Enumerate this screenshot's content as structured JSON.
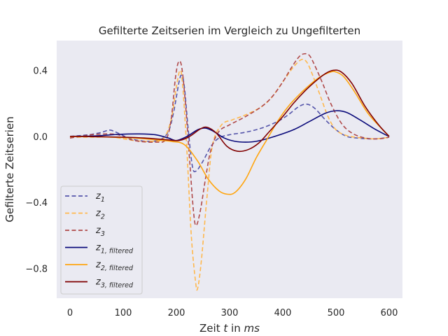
{
  "chart_data": {
    "type": "line",
    "title": "Gefilterte Zeitserien im Vergleich zu Ungefilterten",
    "xlabel_prefix": "Zeit",
    "xlabel_var": "t",
    "xlabel_mid": "in",
    "xlabel_unit": "ms",
    "ylabel": "Gefilterte Zeitserien",
    "xlim": [
      -25,
      625
    ],
    "ylim": [
      -0.98,
      0.58
    ],
    "xticks": [
      0,
      100,
      200,
      300,
      400,
      500,
      600
    ],
    "yticks": [
      0.4,
      0.0,
      -0.4,
      -0.8
    ],
    "xtick_labels": [
      "0",
      "100",
      "200",
      "300",
      "400",
      "500",
      "600"
    ],
    "ytick_labels": [
      "0.4",
      "0.0",
      "−0.4",
      "−0.8"
    ],
    "grid": false,
    "legend_position": "lower-left",
    "background": "#eaeaf2",
    "series": [
      {
        "base": "z",
        "sub": "1",
        "dashed": true,
        "color": "#5555aa",
        "points": [
          [
            0,
            0.0
          ],
          [
            20,
            0.005
          ],
          [
            40,
            0.012
          ],
          [
            60,
            0.025
          ],
          [
            75,
            0.038
          ],
          [
            90,
            0.02
          ],
          [
            110,
            -0.01
          ],
          [
            130,
            -0.025
          ],
          [
            150,
            -0.03
          ],
          [
            170,
            -0.02
          ],
          [
            185,
            0.03
          ],
          [
            195,
            0.15
          ],
          [
            205,
            0.33
          ],
          [
            210,
            0.37
          ],
          [
            215,
            0.3
          ],
          [
            222,
            0.05
          ],
          [
            230,
            -0.18
          ],
          [
            237,
            -0.21
          ],
          [
            250,
            -0.15
          ],
          [
            265,
            -0.06
          ],
          [
            280,
            -0.01
          ],
          [
            300,
            0.01
          ],
          [
            330,
            0.025
          ],
          [
            360,
            0.05
          ],
          [
            390,
            0.09
          ],
          [
            410,
            0.13
          ],
          [
            430,
            0.18
          ],
          [
            445,
            0.195
          ],
          [
            460,
            0.17
          ],
          [
            480,
            0.1
          ],
          [
            500,
            0.04
          ],
          [
            520,
            0.0
          ],
          [
            540,
            -0.01
          ],
          [
            560,
            -0.015
          ],
          [
            575,
            -0.015
          ],
          [
            590,
            -0.01
          ],
          [
            600,
            -0.005
          ]
        ]
      },
      {
        "base": "z",
        "sub": "2",
        "dashed": true,
        "color": "#ffb84d",
        "points": [
          [
            0,
            -0.005
          ],
          [
            40,
            -0.005
          ],
          [
            80,
            -0.005
          ],
          [
            120,
            -0.025
          ],
          [
            150,
            -0.03
          ],
          [
            175,
            -0.015
          ],
          [
            190,
            0.1
          ],
          [
            200,
            0.3
          ],
          [
            207,
            0.4
          ],
          [
            212,
            0.3
          ],
          [
            220,
            -0.1
          ],
          [
            228,
            -0.6
          ],
          [
            236,
            -0.88
          ],
          [
            240,
            -0.92
          ],
          [
            247,
            -0.75
          ],
          [
            258,
            -0.35
          ],
          [
            268,
            -0.05
          ],
          [
            285,
            0.07
          ],
          [
            305,
            0.1
          ],
          [
            330,
            0.13
          ],
          [
            360,
            0.18
          ],
          [
            380,
            0.24
          ],
          [
            400,
            0.33
          ],
          [
            420,
            0.42
          ],
          [
            435,
            0.465
          ],
          [
            445,
            0.45
          ],
          [
            455,
            0.38
          ],
          [
            470,
            0.25
          ],
          [
            485,
            0.12
          ],
          [
            500,
            0.04
          ],
          [
            520,
            0.005
          ],
          [
            550,
            -0.01
          ],
          [
            575,
            -0.015
          ],
          [
            600,
            -0.005
          ]
        ]
      },
      {
        "base": "z",
        "sub": "3",
        "dashed": true,
        "color": "#b04a4a",
        "points": [
          [
            0,
            -0.01
          ],
          [
            20,
            0.0
          ],
          [
            40,
            0.01
          ],
          [
            70,
            0.015
          ],
          [
            90,
            0.01
          ],
          [
            110,
            -0.015
          ],
          [
            130,
            -0.03
          ],
          [
            160,
            -0.035
          ],
          [
            180,
            -0.02
          ],
          [
            190,
            0.1
          ],
          [
            198,
            0.35
          ],
          [
            204,
            0.45
          ],
          [
            210,
            0.42
          ],
          [
            217,
            0.2
          ],
          [
            225,
            -0.15
          ],
          [
            232,
            -0.45
          ],
          [
            237,
            -0.54
          ],
          [
            245,
            -0.45
          ],
          [
            255,
            -0.25
          ],
          [
            265,
            -0.08
          ],
          [
            280,
            0.03
          ],
          [
            300,
            0.07
          ],
          [
            330,
            0.12
          ],
          [
            360,
            0.18
          ],
          [
            380,
            0.24
          ],
          [
            400,
            0.33
          ],
          [
            415,
            0.41
          ],
          [
            430,
            0.48
          ],
          [
            440,
            0.5
          ],
          [
            450,
            0.49
          ],
          [
            460,
            0.43
          ],
          [
            475,
            0.32
          ],
          [
            490,
            0.2
          ],
          [
            510,
            0.08
          ],
          [
            530,
            0.02
          ],
          [
            555,
            -0.01
          ],
          [
            580,
            -0.015
          ],
          [
            600,
            -0.005
          ]
        ]
      },
      {
        "base": "z",
        "sub": "1, filtered",
        "dashed": false,
        "color": "#0a0a7a",
        "points": [
          [
            0,
            0.0
          ],
          [
            50,
            0.003
          ],
          [
            90,
            0.012
          ],
          [
            130,
            0.015
          ],
          [
            160,
            0.01
          ],
          [
            185,
            -0.01
          ],
          [
            200,
            -0.025
          ],
          [
            220,
            0.0
          ],
          [
            240,
            0.04
          ],
          [
            255,
            0.05
          ],
          [
            270,
            0.03
          ],
          [
            290,
            -0.01
          ],
          [
            310,
            -0.03
          ],
          [
            330,
            -0.035
          ],
          [
            350,
            -0.03
          ],
          [
            380,
            -0.005
          ],
          [
            420,
            0.04
          ],
          [
            450,
            0.09
          ],
          [
            480,
            0.14
          ],
          [
            500,
            0.155
          ],
          [
            520,
            0.145
          ],
          [
            545,
            0.1
          ],
          [
            570,
            0.05
          ],
          [
            590,
            0.015
          ],
          [
            600,
            0.0
          ]
        ]
      },
      {
        "base": "z",
        "sub": "2, filtered",
        "dashed": false,
        "color": "#ffa50f",
        "points": [
          [
            0,
            0.0
          ],
          [
            60,
            -0.003
          ],
          [
            120,
            -0.01
          ],
          [
            160,
            -0.02
          ],
          [
            190,
            -0.03
          ],
          [
            215,
            -0.05
          ],
          [
            240,
            -0.15
          ],
          [
            260,
            -0.26
          ],
          [
            280,
            -0.33
          ],
          [
            295,
            -0.35
          ],
          [
            310,
            -0.34
          ],
          [
            330,
            -0.26
          ],
          [
            350,
            -0.13
          ],
          [
            370,
            -0.02
          ],
          [
            390,
            0.09
          ],
          [
            410,
            0.18
          ],
          [
            430,
            0.25
          ],
          [
            450,
            0.31
          ],
          [
            470,
            0.36
          ],
          [
            490,
            0.39
          ],
          [
            500,
            0.39
          ],
          [
            515,
            0.36
          ],
          [
            535,
            0.27
          ],
          [
            560,
            0.14
          ],
          [
            585,
            0.05
          ],
          [
            600,
            0.0
          ]
        ]
      },
      {
        "base": "z",
        "sub": "3, filtered",
        "dashed": false,
        "color": "#800000",
        "points": [
          [
            0,
            0.0
          ],
          [
            50,
            -0.002
          ],
          [
            100,
            -0.005
          ],
          [
            140,
            -0.01
          ],
          [
            180,
            -0.02
          ],
          [
            205,
            -0.025
          ],
          [
            225,
            0.0
          ],
          [
            245,
            0.045
          ],
          [
            258,
            0.055
          ],
          [
            275,
            0.02
          ],
          [
            295,
            -0.06
          ],
          [
            315,
            -0.09
          ],
          [
            335,
            -0.08
          ],
          [
            355,
            -0.04
          ],
          [
            375,
            0.03
          ],
          [
            400,
            0.12
          ],
          [
            420,
            0.2
          ],
          [
            440,
            0.27
          ],
          [
            460,
            0.33
          ],
          [
            480,
            0.38
          ],
          [
            495,
            0.4
          ],
          [
            510,
            0.39
          ],
          [
            530,
            0.32
          ],
          [
            555,
            0.18
          ],
          [
            580,
            0.07
          ],
          [
            600,
            0.0
          ]
        ]
      }
    ]
  }
}
